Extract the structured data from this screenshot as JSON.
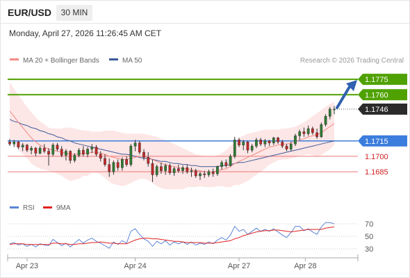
{
  "header": {
    "symbol": "EUR/USD",
    "timeframe": "30 MIN",
    "timestamp": "Monday, April 27, 2026 11:26:45 AM CET"
  },
  "legend": {
    "ma20_label": "MA 20 + Bollinger Bands",
    "ma50_label": "MA 50",
    "credit": "Research © 2026 Trading Central",
    "rsi_label": "RSI",
    "rsi_ma_label": "9MA"
  },
  "colors": {
    "candle_up": "#2e7d32",
    "candle_down": "#c62828",
    "ma20": "#f28b82",
    "ma50": "#3d5a99",
    "bollinger_fill": "#fde3e3",
    "resistance": "#4fa100",
    "pivot": "#3b7ddd",
    "support": "#ee7777",
    "last_price_bg": "#2b2b2b",
    "arrow": "#3060b0",
    "rsi": "#5b84d6",
    "rsi_ma": "#e02020"
  },
  "chart_data": [
    {
      "type": "candlestick",
      "instrument": "EUR/USD",
      "interval": "30 MIN",
      "x_tick_labels": [
        "Apr 23",
        "Apr 24",
        "Apr 27",
        "Apr 28"
      ],
      "ylim": [
        1.166,
        1.179
      ],
      "last_price": "1.1746",
      "levels": [
        {
          "value": 1.1775,
          "label": "1.1775",
          "kind": "resistance"
        },
        {
          "value": 1.176,
          "label": "1.1760",
          "kind": "resistance"
        },
        {
          "value": 1.1715,
          "label": "1.1715",
          "kind": "pivot"
        },
        {
          "value": 1.17,
          "label": "1.1700",
          "kind": "support"
        },
        {
          "value": 1.1685,
          "label": "1.1685",
          "kind": "support"
        }
      ],
      "ohlc": [
        [
          1.1714,
          1.1717,
          1.171,
          1.1712
        ],
        [
          1.1712,
          1.1716,
          1.1709,
          1.1714
        ],
        [
          1.1714,
          1.1715,
          1.1707,
          1.1709
        ],
        [
          1.1709,
          1.1713,
          1.1705,
          1.1711
        ],
        [
          1.1711,
          1.1712,
          1.1704,
          1.1706
        ],
        [
          1.1706,
          1.171,
          1.1702,
          1.1708
        ],
        [
          1.1708,
          1.1709,
          1.17,
          1.1703
        ],
        [
          1.1703,
          1.171,
          1.1702,
          1.1708
        ],
        [
          1.1708,
          1.1712,
          1.1703,
          1.1705
        ],
        [
          1.1705,
          1.1708,
          1.1691,
          1.1702
        ],
        [
          1.1702,
          1.1713,
          1.17,
          1.1711
        ],
        [
          1.1711,
          1.1713,
          1.1705,
          1.1707
        ],
        [
          1.1707,
          1.171,
          1.1699,
          1.1701
        ],
        [
          1.1701,
          1.1707,
          1.1696,
          1.1705
        ],
        [
          1.1705,
          1.1706,
          1.1693,
          1.1696
        ],
        [
          1.1696,
          1.1703,
          1.1694,
          1.1701
        ],
        [
          1.1701,
          1.1708,
          1.1699,
          1.1706
        ],
        [
          1.1706,
          1.171,
          1.17,
          1.1702
        ],
        [
          1.1702,
          1.1709,
          1.1699,
          1.1707
        ],
        [
          1.1707,
          1.1712,
          1.1703,
          1.1709
        ],
        [
          1.1709,
          1.1711,
          1.17,
          1.1702
        ],
        [
          1.1702,
          1.1705,
          1.1695,
          1.1698
        ],
        [
          1.1698,
          1.1702,
          1.169,
          1.1692
        ],
        [
          1.1692,
          1.1698,
          1.168,
          1.1685
        ],
        [
          1.1685,
          1.1696,
          1.1682,
          1.1694
        ],
        [
          1.1694,
          1.1697,
          1.1686,
          1.1689
        ],
        [
          1.1689,
          1.1699,
          1.1686,
          1.1697
        ],
        [
          1.1697,
          1.17,
          1.169,
          1.1692
        ],
        [
          1.1692,
          1.1712,
          1.169,
          1.171
        ],
        [
          1.171,
          1.1716,
          1.1705,
          1.1713
        ],
        [
          1.1713,
          1.1715,
          1.1702,
          1.1704
        ],
        [
          1.1704,
          1.1707,
          1.1696,
          1.1699
        ],
        [
          1.1699,
          1.1704,
          1.169,
          1.1693
        ],
        [
          1.1693,
          1.1697,
          1.1675,
          1.1682
        ],
        [
          1.1682,
          1.1692,
          1.168,
          1.169
        ],
        [
          1.169,
          1.1694,
          1.1683,
          1.1686
        ],
        [
          1.1686,
          1.1693,
          1.1682,
          1.1691
        ],
        [
          1.1691,
          1.1693,
          1.1682,
          1.1684
        ],
        [
          1.1684,
          1.169,
          1.1681,
          1.1688
        ],
        [
          1.1688,
          1.1692,
          1.1684,
          1.1686
        ],
        [
          1.1686,
          1.1691,
          1.1683,
          1.1689
        ],
        [
          1.1689,
          1.1692,
          1.1683,
          1.1685
        ],
        [
          1.1685,
          1.1689,
          1.168,
          1.1686
        ],
        [
          1.1686,
          1.1688,
          1.1679,
          1.1681
        ],
        [
          1.1681,
          1.1685,
          1.1677,
          1.1683
        ],
        [
          1.1683,
          1.1686,
          1.1679,
          1.1682
        ],
        [
          1.1682,
          1.1687,
          1.168,
          1.1685
        ],
        [
          1.1685,
          1.1688,
          1.168,
          1.1683
        ],
        [
          1.1683,
          1.1691,
          1.1681,
          1.169
        ],
        [
          1.169,
          1.1696,
          1.1687,
          1.1694
        ],
        [
          1.1694,
          1.1697,
          1.1689,
          1.1691
        ],
        [
          1.1691,
          1.1702,
          1.169,
          1.17
        ],
        [
          1.17,
          1.1719,
          1.1698,
          1.1716
        ],
        [
          1.1716,
          1.1718,
          1.1709,
          1.1711
        ],
        [
          1.1711,
          1.1716,
          1.1706,
          1.1714
        ],
        [
          1.1714,
          1.1715,
          1.1703,
          1.1706
        ],
        [
          1.1706,
          1.1712,
          1.1704,
          1.171
        ],
        [
          1.171,
          1.1718,
          1.1708,
          1.1716
        ],
        [
          1.1716,
          1.1718,
          1.171,
          1.1712
        ],
        [
          1.1712,
          1.1717,
          1.1709,
          1.1715
        ],
        [
          1.1715,
          1.1716,
          1.171,
          1.1713
        ],
        [
          1.1713,
          1.1719,
          1.1711,
          1.1718
        ],
        [
          1.1718,
          1.1719,
          1.1712,
          1.1714
        ],
        [
          1.1714,
          1.1716,
          1.1708,
          1.171
        ],
        [
          1.171,
          1.1712,
          1.1705,
          1.1707
        ],
        [
          1.1707,
          1.1714,
          1.1705,
          1.1712
        ],
        [
          1.1712,
          1.1722,
          1.171,
          1.172
        ],
        [
          1.172,
          1.1726,
          1.1716,
          1.1724
        ],
        [
          1.1724,
          1.1728,
          1.1719,
          1.1722
        ],
        [
          1.1722,
          1.173,
          1.172,
          1.1727
        ],
        [
          1.1727,
          1.1729,
          1.1721,
          1.1723
        ],
        [
          1.1723,
          1.1727,
          1.1717,
          1.1719
        ],
        [
          1.1719,
          1.1733,
          1.1718,
          1.1731
        ],
        [
          1.1731,
          1.1741,
          1.1729,
          1.1739
        ],
        [
          1.1739,
          1.1748,
          1.1736,
          1.1746
        ],
        [
          1.1746,
          1.1749,
          1.1741,
          1.1746
        ]
      ],
      "ma20": [
        1.1744,
        1.1739,
        1.1733,
        1.1728,
        1.1723,
        1.1718,
        1.1714,
        1.1711,
        1.1709,
        1.1707,
        1.1706,
        1.1705,
        1.1704,
        1.1703,
        1.1702,
        1.1702,
        1.1702,
        1.1703,
        1.1703,
        1.1704,
        1.1704,
        1.1703,
        1.1702,
        1.17,
        1.1699,
        1.1698,
        1.1697,
        1.1697,
        1.1698,
        1.1699,
        1.17,
        1.17,
        1.1699,
        1.1697,
        1.1695,
        1.1693,
        1.1692,
        1.1691,
        1.169,
        1.1689,
        1.1688,
        1.1688,
        1.1687,
        1.1686,
        1.1686,
        1.1685,
        1.1685,
        1.1685,
        1.1686,
        1.1687,
        1.1688,
        1.169,
        1.1693,
        1.1695,
        1.1697,
        1.1699,
        1.1701,
        1.1703,
        1.1705,
        1.1707,
        1.1709,
        1.171,
        1.1711,
        1.1712,
        1.1712,
        1.1713,
        1.1714,
        1.1716,
        1.1717,
        1.1719,
        1.172,
        1.1721,
        1.1723,
        1.1726,
        1.1729,
        1.1732
      ],
      "ma50": [
        1.1736,
        1.1734,
        1.1733,
        1.1731,
        1.173,
        1.1728,
        1.1727,
        1.1725,
        1.1724,
        1.1722,
        1.1721,
        1.1719,
        1.1718,
        1.1716,
        1.1715,
        1.1713,
        1.1712,
        1.1711,
        1.171,
        1.1709,
        1.1708,
        1.1707,
        1.1706,
        1.1705,
        1.1704,
        1.1703,
        1.1702,
        1.1702,
        1.1701,
        1.17,
        1.1699,
        1.1698,
        1.1698,
        1.1697,
        1.1696,
        1.1695,
        1.1695,
        1.1694,
        1.1693,
        1.1693,
        1.1692,
        1.1692,
        1.1691,
        1.1691,
        1.169,
        1.169,
        1.169,
        1.169,
        1.169,
        1.1691,
        1.1691,
        1.1692,
        1.1693,
        1.1694,
        1.1694,
        1.1695,
        1.1696,
        1.1697,
        1.1698,
        1.1699,
        1.17,
        1.1701,
        1.1702,
        1.1703,
        1.1704,
        1.1705,
        1.1706,
        1.1707,
        1.1708,
        1.1709,
        1.171,
        1.1711,
        1.1712,
        1.1713,
        1.1714,
        1.1715
      ],
      "bollinger_upper": [
        1.1772,
        1.1766,
        1.176,
        1.1754,
        1.1748,
        1.1743,
        1.1738,
        1.1734,
        1.1731,
        1.1728,
        1.1727,
        1.1727,
        1.1727,
        1.1728,
        1.1728,
        1.1727,
        1.1726,
        1.1725,
        1.1725,
        1.1724,
        1.1724,
        1.1724,
        1.1725,
        1.1725,
        1.1725,
        1.1724,
        1.1723,
        1.1722,
        1.1722,
        1.1722,
        1.1722,
        1.1722,
        1.1721,
        1.172,
        1.1719,
        1.1717,
        1.1716,
        1.1714,
        1.1712,
        1.171,
        1.1708,
        1.1706,
        1.1704,
        1.1702,
        1.1701,
        1.17,
        1.17,
        1.17,
        1.1701,
        1.1703,
        1.1706,
        1.171,
        1.1714,
        1.1718,
        1.172,
        1.1722,
        1.1723,
        1.1724,
        1.1725,
        1.1726,
        1.1726,
        1.1726,
        1.1726,
        1.1727,
        1.1727,
        1.1728,
        1.1729,
        1.1731,
        1.1733,
        1.1736,
        1.1739,
        1.1742,
        1.1745,
        1.1748,
        1.1751,
        1.1753
      ],
      "bollinger_lower": [
        1.1716,
        1.1712,
        1.1706,
        1.1702,
        1.1698,
        1.1693,
        1.169,
        1.1688,
        1.1687,
        1.1686,
        1.1685,
        1.1683,
        1.1681,
        1.1678,
        1.1676,
        1.1677,
        1.1678,
        1.1681,
        1.1681,
        1.1684,
        1.1684,
        1.1682,
        1.1679,
        1.1675,
        1.1673,
        1.1672,
        1.1671,
        1.1672,
        1.1674,
        1.1676,
        1.1678,
        1.1678,
        1.1677,
        1.1674,
        1.1671,
        1.1669,
        1.1668,
        1.1668,
        1.1668,
        1.1668,
        1.1668,
        1.167,
        1.167,
        1.167,
        1.1671,
        1.167,
        1.167,
        1.167,
        1.1671,
        1.1671,
        1.167,
        1.167,
        1.1672,
        1.1672,
        1.1674,
        1.1676,
        1.1679,
        1.1682,
        1.1685,
        1.1688,
        1.1692,
        1.1694,
        1.1696,
        1.1697,
        1.1697,
        1.1698,
        1.1699,
        1.1701,
        1.1701,
        1.1702,
        1.1701,
        1.17,
        1.1701,
        1.1704,
        1.1707,
        1.1711
      ]
    },
    {
      "type": "line",
      "name": "RSI",
      "y_tick_labels": [
        "70",
        "50",
        "30"
      ],
      "ylim": [
        20,
        80
      ],
      "series": [
        {
          "name": "RSI",
          "values": [
            38,
            40,
            36,
            38,
            34,
            37,
            33,
            38,
            36,
            35,
            45,
            40,
            35,
            39,
            33,
            39,
            45,
            39,
            44,
            47,
            42,
            39,
            35,
            31,
            41,
            37,
            43,
            39,
            58,
            62,
            53,
            46,
            42,
            34,
            42,
            38,
            43,
            36,
            41,
            38,
            41,
            37,
            41,
            36,
            39,
            37,
            41,
            38,
            44,
            48,
            44,
            52,
            66,
            58,
            61,
            53,
            58,
            63,
            58,
            61,
            58,
            62,
            57,
            52,
            48,
            56,
            66,
            66,
            59,
            62,
            57,
            53,
            65,
            72,
            72,
            70
          ]
        },
        {
          "name": "9MA",
          "values": [
            37,
            38,
            38,
            38,
            37,
            37,
            37,
            37,
            37,
            37,
            39,
            39,
            38,
            38,
            37,
            37,
            38,
            38,
            39,
            40,
            40,
            41,
            40,
            39,
            39,
            38,
            38,
            38,
            41,
            44,
            46,
            47,
            47,
            46,
            46,
            45,
            44,
            43,
            42,
            42,
            41,
            40,
            40,
            40,
            40,
            39,
            39,
            39,
            40,
            41,
            42,
            43,
            46,
            48,
            51,
            53,
            55,
            57,
            58,
            59,
            59,
            60,
            60,
            59,
            58,
            57,
            58,
            59,
            60,
            61,
            61,
            61,
            61,
            63,
            64,
            65
          ]
        }
      ]
    }
  ]
}
